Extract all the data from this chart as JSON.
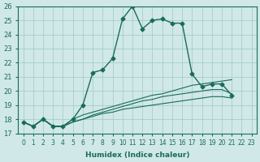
{
  "xlabel": "Humidex (Indice chaleur)",
  "ylabel": "",
  "bg_color": "#d0e8e8",
  "grid_color": "#a0c8c8",
  "line_color": "#1a6b5a",
  "xlim": [
    0,
    23
  ],
  "ylim": [
    17,
    26
  ],
  "xticks": [
    0,
    1,
    2,
    3,
    4,
    5,
    6,
    7,
    8,
    9,
    10,
    11,
    12,
    13,
    14,
    15,
    16,
    17,
    18,
    19,
    20,
    21,
    22,
    23
  ],
  "yticks": [
    17,
    18,
    19,
    20,
    21,
    22,
    23,
    24,
    25,
    26
  ],
  "series": [
    [
      17.8,
      17.5,
      18.0,
      17.5,
      17.5,
      18.0,
      19.0,
      21.3,
      21.5,
      22.3,
      25.1,
      26.0,
      24.4,
      25.0,
      25.1,
      24.8,
      24.8,
      21.2,
      20.3,
      20.5,
      20.5,
      19.7,
      null,
      null
    ],
    [
      17.8,
      17.5,
      18.0,
      17.5,
      17.5,
      18.0,
      18.3,
      18.5,
      18.7,
      18.9,
      19.1,
      19.3,
      19.5,
      19.7,
      19.8,
      20.0,
      20.2,
      20.4,
      20.5,
      20.6,
      20.7,
      20.8,
      null,
      null
    ],
    [
      17.8,
      17.5,
      18.0,
      17.5,
      17.5,
      17.8,
      18.0,
      18.3,
      18.5,
      18.7,
      18.9,
      19.1,
      19.3,
      19.4,
      19.6,
      19.7,
      19.8,
      19.9,
      20.0,
      20.1,
      20.1,
      19.8,
      null,
      null
    ],
    [
      17.8,
      17.5,
      18.0,
      17.5,
      17.5,
      17.8,
      18.0,
      18.2,
      18.4,
      18.5,
      18.7,
      18.8,
      18.9,
      19.0,
      19.1,
      19.2,
      19.3,
      19.4,
      19.5,
      19.6,
      19.6,
      19.5,
      null,
      null
    ]
  ]
}
